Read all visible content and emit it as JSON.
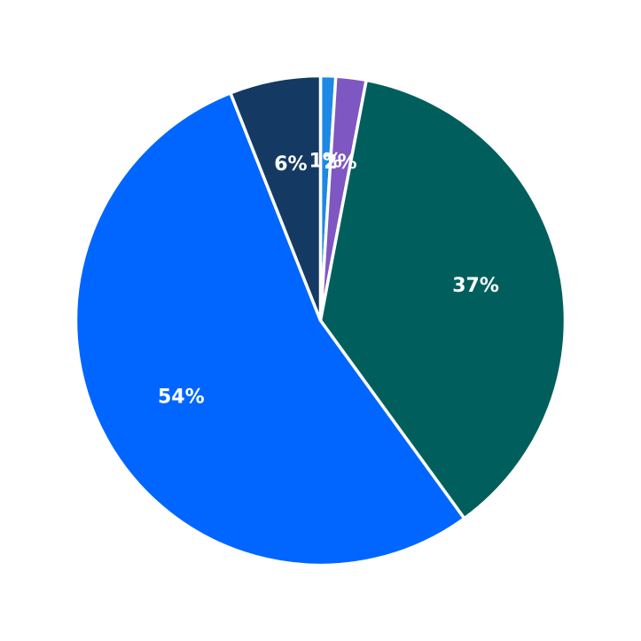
{
  "chart_data": {
    "type": "pie",
    "title": "",
    "start_angle_deg": 90,
    "direction": "clockwise",
    "slices": [
      {
        "label": "1%",
        "value": 1,
        "color": "#1e88e5"
      },
      {
        "label": "2%",
        "value": 2,
        "color": "#7e57c2"
      },
      {
        "label": "37%",
        "value": 37,
        "color": "#005f5c"
      },
      {
        "label": "54%",
        "value": 54,
        "color": "#0066ff"
      },
      {
        "label": "6%",
        "value": 6,
        "color": "#143a63"
      }
    ]
  }
}
